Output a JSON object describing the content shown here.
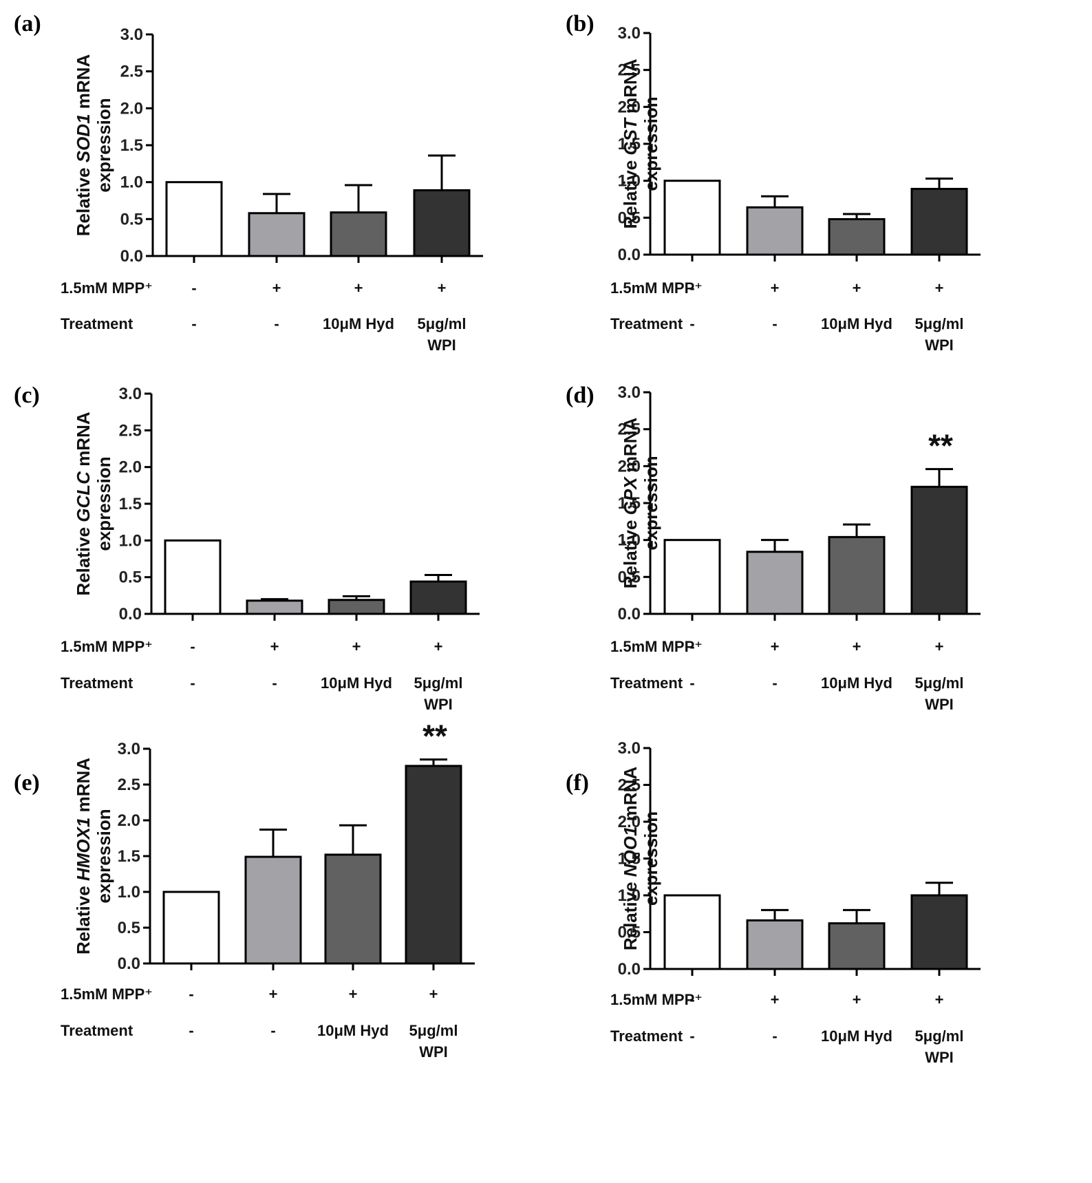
{
  "colors": {
    "axis": "#000000",
    "bar_outline": "#000000",
    "bar_fills": [
      "#ffffff",
      "#a3a3a7",
      "#616161",
      "#333333"
    ]
  },
  "row_labels": {
    "mpp": "1.5mM MPP⁺",
    "treatment": "Treatment"
  },
  "conditions": {
    "mpp": [
      "-",
      "+",
      "+",
      "+"
    ],
    "treatment": [
      [
        "-"
      ],
      [
        "-"
      ],
      [
        "10μM Hyd"
      ],
      [
        "5μg/ml",
        "WPI"
      ]
    ]
  },
  "chart_data": [
    {
      "panel": "(a)",
      "type": "bar",
      "ylabel_prefix": "Relative ",
      "gene": "SOD1",
      "ylabel_suffix": " mRNA",
      "ylabel_line2": "expression",
      "ylim": [
        0,
        3.0
      ],
      "yticks": [
        "0.0",
        "0.5",
        "1.0",
        "1.5",
        "2.0",
        "2.5",
        "3.0"
      ],
      "values": [
        1.0,
        0.58,
        0.59,
        0.89
      ],
      "errors": [
        0,
        0.26,
        0.37,
        0.47
      ],
      "significance": [
        "",
        "",
        "",
        ""
      ]
    },
    {
      "panel": "(b)",
      "type": "bar",
      "ylabel_prefix": "Relative ",
      "gene": "GST",
      "ylabel_suffix": " mRNA",
      "ylabel_line2": "expression",
      "ylim": [
        0,
        3.0
      ],
      "yticks": [
        "0.0",
        "0.5",
        "1.0",
        "1.5",
        "2.0",
        "2.5",
        "3.0"
      ],
      "values": [
        1.0,
        0.64,
        0.48,
        0.89
      ],
      "errors": [
        0,
        0.15,
        0.07,
        0.14
      ],
      "significance": [
        "",
        "",
        "",
        ""
      ]
    },
    {
      "panel": "(c)",
      "type": "bar",
      "ylabel_prefix": "Relative ",
      "gene": "GCLC",
      "ylabel_suffix": " mRNA",
      "ylabel_line2": "expression",
      "ylim": [
        0,
        3.0
      ],
      "yticks": [
        "0.0",
        "0.5",
        "1.0",
        "1.5",
        "2.0",
        "2.5",
        "3.0"
      ],
      "values": [
        1.0,
        0.18,
        0.19,
        0.44
      ],
      "errors": [
        0,
        0.02,
        0.05,
        0.09
      ],
      "significance": [
        "",
        "",
        "",
        ""
      ]
    },
    {
      "panel": "(d)",
      "type": "bar",
      "ylabel_prefix": "Relative ",
      "gene": "GPX",
      "ylabel_suffix": " mRNA",
      "ylabel_line2": "expression",
      "ylim": [
        0,
        3.0
      ],
      "yticks": [
        "0.0",
        "0.5",
        "1.0",
        "1.5",
        "2.0",
        "2.5",
        "3.0"
      ],
      "values": [
        1.0,
        0.84,
        1.04,
        1.72
      ],
      "errors": [
        0,
        0.16,
        0.17,
        0.24
      ],
      "significance": [
        "",
        "",
        "",
        "**"
      ]
    },
    {
      "panel": "(e)",
      "type": "bar",
      "ylabel_prefix": "Relative ",
      "gene": "HMOX1",
      "ylabel_suffix": " mRNA",
      "ylabel_line2": "expression",
      "ylim": [
        0,
        3.0
      ],
      "yticks": [
        "0.0",
        "0.5",
        "1.0",
        "1.5",
        "2.0",
        "2.5",
        "3.0"
      ],
      "values": [
        1.0,
        1.49,
        1.52,
        2.76
      ],
      "errors": [
        0,
        0.38,
        0.41,
        0.09
      ],
      "significance": [
        "",
        "",
        "",
        "**"
      ]
    },
    {
      "panel": "(f)",
      "type": "bar",
      "ylabel_prefix": "Relative ",
      "gene": "NQO1",
      "ylabel_suffix": " mRNA",
      "ylabel_line2": "expression",
      "ylim": [
        0,
        3.0
      ],
      "yticks": [
        "0.0",
        "0.5",
        "1.0",
        "1.5",
        "2.0",
        "2.5",
        "3.0"
      ],
      "values": [
        1.0,
        0.66,
        0.62,
        1.0
      ],
      "errors": [
        0,
        0.14,
        0.18,
        0.17
      ],
      "significance": [
        "",
        "",
        "",
        ""
      ]
    }
  ]
}
